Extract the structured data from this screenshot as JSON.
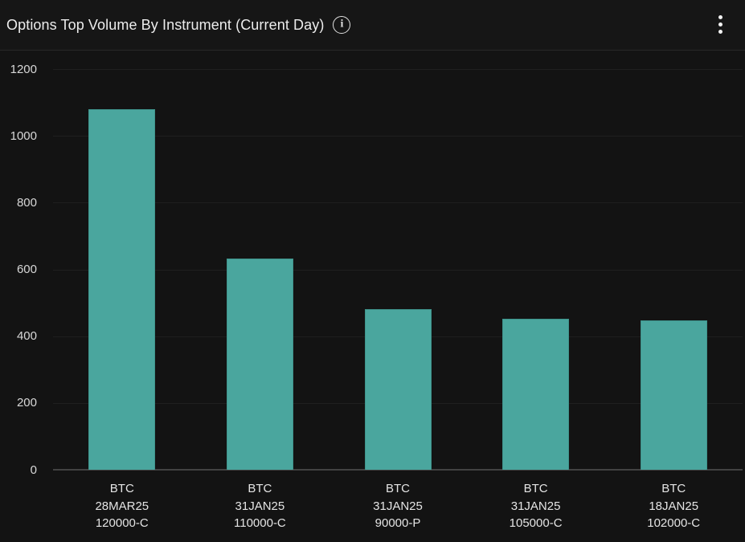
{
  "header": {
    "title": "Options Top Volume By Instrument (Current Day)",
    "info_icon": "info-circle-icon",
    "info_glyph": "i",
    "menu_icon": "kebab-vertical-icon"
  },
  "colors": {
    "background": "#131313",
    "header_background": "#161616",
    "divider": "#282828",
    "bar_fill": "#4aa69e",
    "bar_border": "#3f948c",
    "gridline": "#1f1f1f",
    "axis_line": "#424242",
    "title_text": "#ececec",
    "tick_text": "#d8d8d8",
    "category_text": "#e4e4e4"
  },
  "chart_data": {
    "type": "bar",
    "title": "Options Top Volume By Instrument (Current Day)",
    "categories": [
      "BTC\n28MAR25\n120000-C",
      "BTC\n31JAN25\n110000-C",
      "BTC\n31JAN25\n90000-P",
      "BTC\n31JAN25\n105000-C",
      "BTC\n18JAN25\n102000-C"
    ],
    "values": [
      1080,
      632,
      480,
      452,
      447
    ],
    "xlabel": "",
    "ylabel": "",
    "ylim": [
      0,
      1200
    ],
    "yticks": [
      0,
      200,
      400,
      600,
      800,
      1000,
      1200
    ],
    "grid": true,
    "legend": false,
    "bar_color": "#4aa69e"
  }
}
